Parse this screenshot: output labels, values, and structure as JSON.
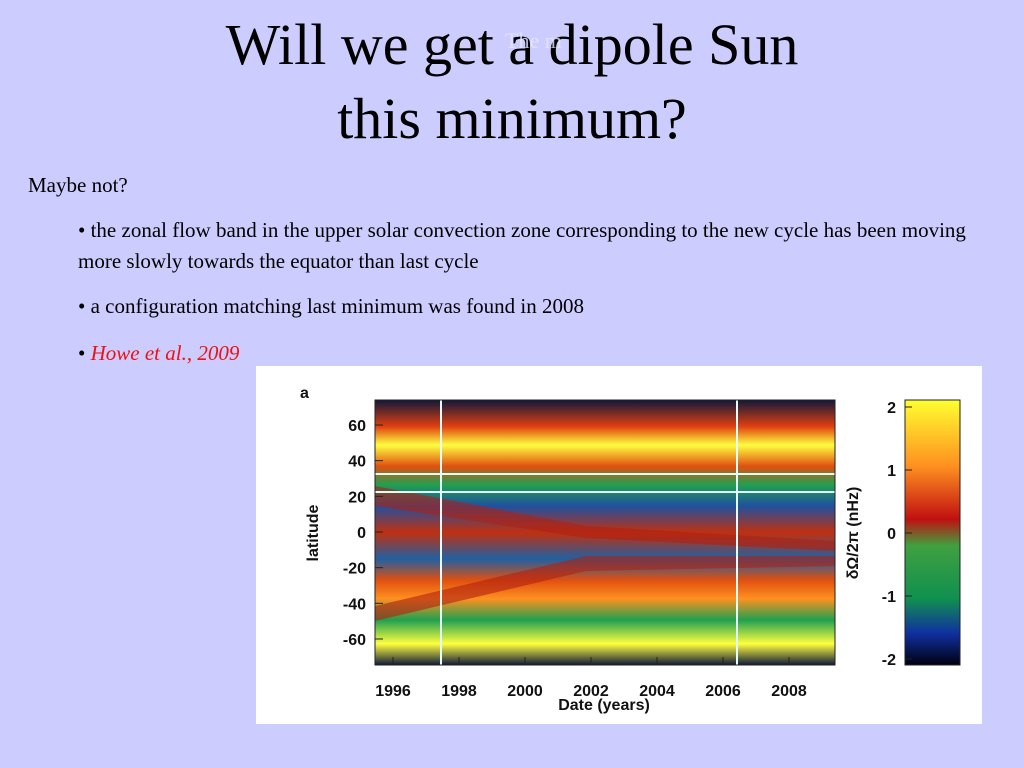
{
  "slide": {
    "title_lines": [
      "Will we get a dipole Sun",
      "this minimum?"
    ],
    "ghost_text": "The m",
    "intro": "Maybe not?",
    "bullets": [
      "• the zonal flow band in the upper solar convection zone corresponding to the new cycle has been moving more slowly towards the equator than last cycle",
      "• a configuration matching last minimum was found in 2008"
    ],
    "citation_bullet": "• ",
    "citation": "Howe et al., 2009"
  },
  "figure": {
    "panel_label": "a",
    "y_label": "latitude",
    "x_label": "Date (years)",
    "colorbar_label": "δΩ/2π (nHz)",
    "yticks": [
      60,
      40,
      20,
      0,
      -20,
      -40,
      -60
    ],
    "xticks": [
      1996,
      1998,
      2000,
      2002,
      2004,
      2006,
      2008
    ],
    "colorbar_ticks": [
      2,
      1,
      0,
      -1,
      -2
    ]
  }
}
